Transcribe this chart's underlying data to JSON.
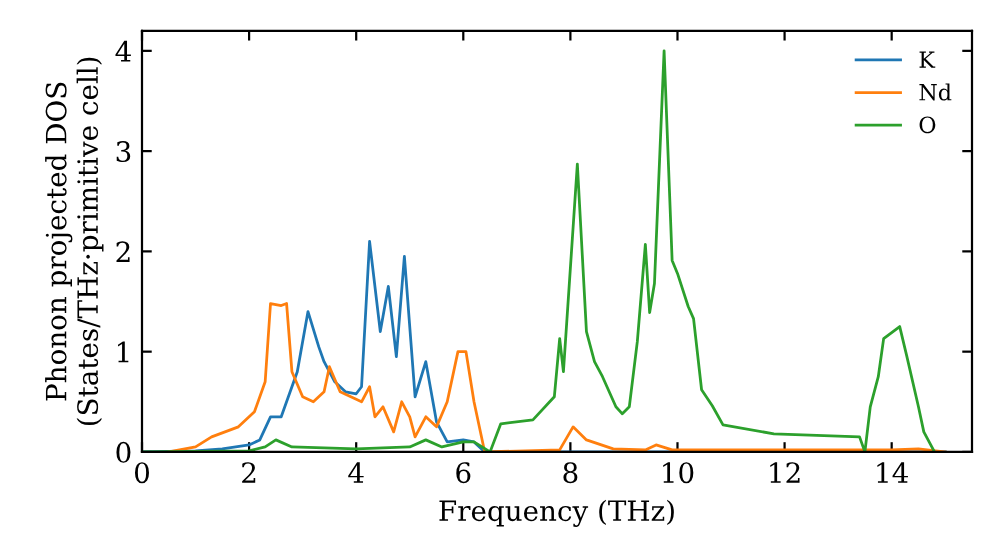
{
  "chart_data": {
    "type": "line",
    "xlabel": "Frequency (THz)",
    "ylabel": "Phonon projected DOS\n(States/THz·primitive cell)",
    "xlim": [
      0,
      15.5
    ],
    "ylim": [
      0,
      4.2
    ],
    "xticks": [
      0,
      2,
      4,
      6,
      8,
      10,
      12,
      14
    ],
    "yticks": [
      0,
      1,
      2,
      3,
      4
    ],
    "legend": "top right",
    "grid": false,
    "marker": "none",
    "line_style": "solid",
    "series": [
      {
        "name": "K",
        "color": "#1f77b4",
        "x": [
          0,
          1.0,
          1.5,
          2.0,
          2.2,
          2.4,
          2.6,
          2.9,
          3.1,
          3.3,
          3.4,
          3.6,
          3.8,
          4.0,
          4.1,
          4.25,
          4.45,
          4.6,
          4.75,
          4.9,
          5.1,
          5.3,
          5.5,
          5.7,
          6.0,
          6.2,
          6.4,
          15.0
        ],
        "values": [
          0,
          0.01,
          0.03,
          0.07,
          0.12,
          0.35,
          0.35,
          0.8,
          1.4,
          1.05,
          0.9,
          0.7,
          0.6,
          0.58,
          0.65,
          2.1,
          1.2,
          1.65,
          0.95,
          1.95,
          0.55,
          0.9,
          0.3,
          0.1,
          0.12,
          0.1,
          0,
          0
        ]
      },
      {
        "name": "Nd",
        "color": "#ff7f0e",
        "x": [
          0.5,
          1.0,
          1.3,
          1.8,
          2.1,
          2.3,
          2.4,
          2.6,
          2.7,
          2.8,
          3.0,
          3.2,
          3.4,
          3.5,
          3.7,
          3.9,
          4.1,
          4.25,
          4.35,
          4.5,
          4.7,
          4.85,
          5.0,
          5.1,
          5.3,
          5.5,
          5.7,
          5.9,
          6.05,
          6.2,
          6.4,
          7.8,
          8.05,
          8.3,
          8.8,
          9.4,
          9.6,
          9.9,
          14.0,
          14.5,
          15.0
        ],
        "values": [
          0,
          0.05,
          0.15,
          0.25,
          0.4,
          0.7,
          1.48,
          1.46,
          1.48,
          0.8,
          0.55,
          0.5,
          0.6,
          0.85,
          0.6,
          0.55,
          0.5,
          0.65,
          0.35,
          0.45,
          0.2,
          0.5,
          0.35,
          0.15,
          0.35,
          0.25,
          0.5,
          1.0,
          1.0,
          0.5,
          0,
          0.02,
          0.25,
          0.12,
          0.03,
          0.02,
          0.07,
          0.02,
          0.02,
          0.03,
          0
        ]
      },
      {
        "name": "O",
        "color": "#2ca02c",
        "x": [
          0,
          2.0,
          2.3,
          2.5,
          2.8,
          4.0,
          5.0,
          5.3,
          5.6,
          6.0,
          6.2,
          6.5,
          6.7,
          7.3,
          7.7,
          7.8,
          7.87,
          8.13,
          8.3,
          8.45,
          8.6,
          8.85,
          8.97,
          9.1,
          9.25,
          9.4,
          9.48,
          9.57,
          9.75,
          9.9,
          10.0,
          10.2,
          10.3,
          10.45,
          10.65,
          10.85,
          11.8,
          13.4,
          13.5,
          13.6,
          13.75,
          13.85,
          14.15,
          14.28,
          14.5,
          14.6,
          14.8
        ],
        "values": [
          0,
          0.01,
          0.05,
          0.12,
          0.05,
          0.03,
          0.05,
          0.12,
          0.05,
          0.1,
          0.1,
          0,
          0.28,
          0.32,
          0.55,
          1.13,
          0.8,
          2.87,
          1.2,
          0.9,
          0.75,
          0.45,
          0.38,
          0.45,
          1.1,
          2.07,
          1.39,
          1.68,
          4.0,
          1.91,
          1.78,
          1.45,
          1.33,
          0.62,
          0.46,
          0.27,
          0.18,
          0.15,
          0,
          0.45,
          0.75,
          1.13,
          1.25,
          0.96,
          0.45,
          0.2,
          0
        ]
      }
    ]
  }
}
